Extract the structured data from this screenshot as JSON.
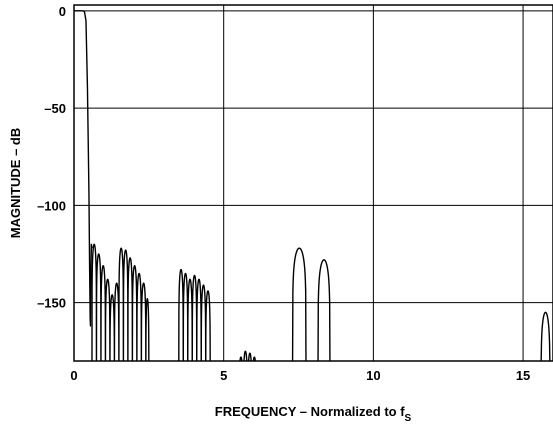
{
  "chart_data": {
    "type": "line",
    "title": "",
    "xlabel": "FREQUENCY – Normalized to f",
    "xlabel_subscript": "S",
    "ylabel": "MAGNITUDE – dB",
    "xlim": [
      0,
      16
    ],
    "ylim": [
      -180,
      3
    ],
    "xticks": [
      0,
      5,
      10,
      15
    ],
    "yticks": [
      0,
      -50,
      -100,
      -150
    ],
    "xtick_labels": [
      "0",
      "5",
      "10",
      "15"
    ],
    "ytick_labels": [
      "0",
      "–50",
      "–100",
      "–150"
    ],
    "grid": true,
    "series": [
      {
        "x": [
          0,
          0.1,
          0.2,
          0.3,
          0.35,
          0.4,
          0.45,
          0.5,
          0.52,
          0.54,
          0.55,
          0.56,
          0.58,
          0.6
        ],
        "y": [
          0,
          0,
          0,
          0,
          -0.5,
          -5,
          -40,
          -95,
          -130,
          -158,
          -162,
          -138,
          -120,
          -122
        ],
        "segment": "passband-transition"
      },
      {
        "segments": [
          {
            "x_range": [
              0.6,
              2.5
            ],
            "lobes": [
              {
                "x": [
                  0.6,
                  0.75
                ],
                "peak": -120
              },
              {
                "x": [
                  0.75,
                  0.9
                ],
                "peak": -125
              },
              {
                "x": [
                  0.9,
                  1.05
                ],
                "peak": -131
              },
              {
                "x": [
                  1.05,
                  1.2
                ],
                "peak": -138
              },
              {
                "x": [
                  1.2,
                  1.35
                ],
                "peak": -146
              },
              {
                "x": [
                  1.35,
                  1.5
                ],
                "peak": -140
              },
              {
                "x": [
                  1.5,
                  1.65
                ],
                "peak": -122
              },
              {
                "x": [
                  1.65,
                  1.8
                ],
                "peak": -123
              },
              {
                "x": [
                  1.8,
                  1.95
                ],
                "peak": -127
              },
              {
                "x": [
                  1.95,
                  2.1
                ],
                "peak": -131
              },
              {
                "x": [
                  2.1,
                  2.25
                ],
                "peak": -135
              },
              {
                "x": [
                  2.25,
                  2.4
                ],
                "peak": -140
              },
              {
                "x": [
                  2.4,
                  2.5
                ],
                "peak": -148
              }
            ]
          },
          {
            "x_range": [
              3.5,
              4.55
            ],
            "lobes": [
              {
                "x": [
                  3.5,
                  3.65
                ],
                "peak": -133
              },
              {
                "x": [
                  3.65,
                  3.8
                ],
                "peak": -135
              },
              {
                "x": [
                  3.8,
                  3.95
                ],
                "peak": -138
              },
              {
                "x": [
                  3.95,
                  4.1
                ],
                "peak": -136
              },
              {
                "x": [
                  4.1,
                  4.25
                ],
                "peak": -138
              },
              {
                "x": [
                  4.25,
                  4.4
                ],
                "peak": -141
              },
              {
                "x": [
                  4.4,
                  4.55
                ],
                "peak": -144
              }
            ]
          },
          {
            "x_range": [
              5.5,
              6.2
            ],
            "lobes": [
              {
                "x": [
                  5.5,
                  5.65
                ],
                "peak": -178
              },
              {
                "x": [
                  5.65,
                  5.8
                ],
                "peak": -175
              },
              {
                "x": [
                  5.8,
                  5.95
                ],
                "peak": -176
              },
              {
                "x": [
                  5.95,
                  6.1
                ],
                "peak": -178
              }
            ]
          },
          {
            "x_range": [
              7.3,
              7.75
            ],
            "lobes": [
              {
                "x": [
                  7.3,
                  7.75
                ],
                "peak": -122
              }
            ]
          },
          {
            "x_range": [
              8.15,
              8.55
            ],
            "lobes": [
              {
                "x": [
                  8.15,
                  8.55
                ],
                "peak": -128
              }
            ]
          },
          {
            "x_range": [
              15.6,
              15.9
            ],
            "lobes": [
              {
                "x": [
                  15.6,
                  15.9
                ],
                "peak": -155
              }
            ]
          }
        ],
        "segment": "stopband-images"
      }
    ]
  }
}
